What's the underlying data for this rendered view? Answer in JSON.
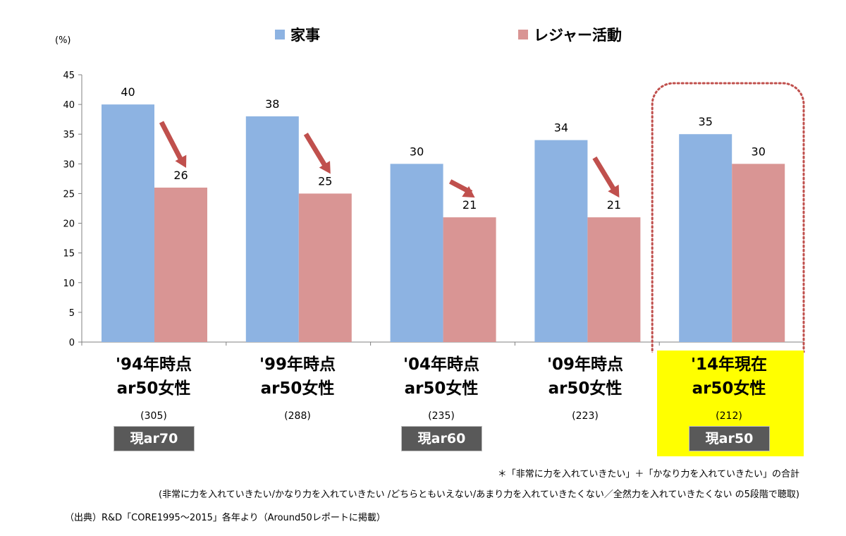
{
  "unit_label": "(%)",
  "legend": [
    {
      "name": "家事",
      "color": "#8db3e2"
    },
    {
      "name": "レジャー活動",
      "color": "#d99594"
    }
  ],
  "groups": [
    {
      "line1": "'94年時点",
      "line2": "ar50女性",
      "n": "(305)",
      "badge": "現ar70",
      "highlight": false
    },
    {
      "line1": "'99年時点",
      "line2": "ar50女性",
      "n": "(288)",
      "badge": "",
      "highlight": false
    },
    {
      "line1": "'04年時点",
      "line2": "ar50女性",
      "n": "(235)",
      "badge": "現ar60",
      "highlight": false
    },
    {
      "line1": "'09年時点",
      "line2": "ar50女性",
      "n": "(223)",
      "badge": "",
      "highlight": false
    },
    {
      "line1": "'14年現在",
      "line2": "ar50女性",
      "n": "(212)",
      "badge": "現ar50",
      "highlight": true
    }
  ],
  "chart_data": {
    "type": "bar",
    "categories": [
      "'94年時点 ar50女性",
      "'99年時点 ar50女性",
      "'04年時点 ar50女性",
      "'09年時点 ar50女性",
      "'14年現在 ar50女性"
    ],
    "series": [
      {
        "name": "家事",
        "values": [
          40,
          38,
          30,
          34,
          35
        ],
        "color": "#8db3e2"
      },
      {
        "name": "レジャー活動",
        "values": [
          26,
          25,
          21,
          21,
          30
        ],
        "color": "#d99594"
      }
    ],
    "ylabel": "(%)",
    "ylim": [
      0,
      45
    ],
    "yticks": [
      0,
      5,
      10,
      15,
      20,
      25,
      30,
      35,
      40,
      45
    ],
    "grid": false,
    "legend_position": "top",
    "annotations": {
      "decline_arrows_on": [
        "'94年時点 ar50女性",
        "'99年時点 ar50女性",
        "'04年時点 ar50女性",
        "'09年時点 ar50女性"
      ],
      "arrow_color": "#c0504d",
      "highlight_category": "'14年現在 ar50女性",
      "highlight_frame_color": "#c0504d"
    }
  },
  "notes": {
    "line1": "＊「非常に力を入れていきたい」＋「かなり力を入れていきたい」の合計",
    "line2": "(非常に力を入れていきたい/かなり力を入れていきたい /どちらともいえない/あまり力を入れていきたくない／全然力を入れていきたくない の5段階で聴取)",
    "source": "（出典）R&D「CORE1995～2015」各年より（Around50レポートに掲載）"
  }
}
